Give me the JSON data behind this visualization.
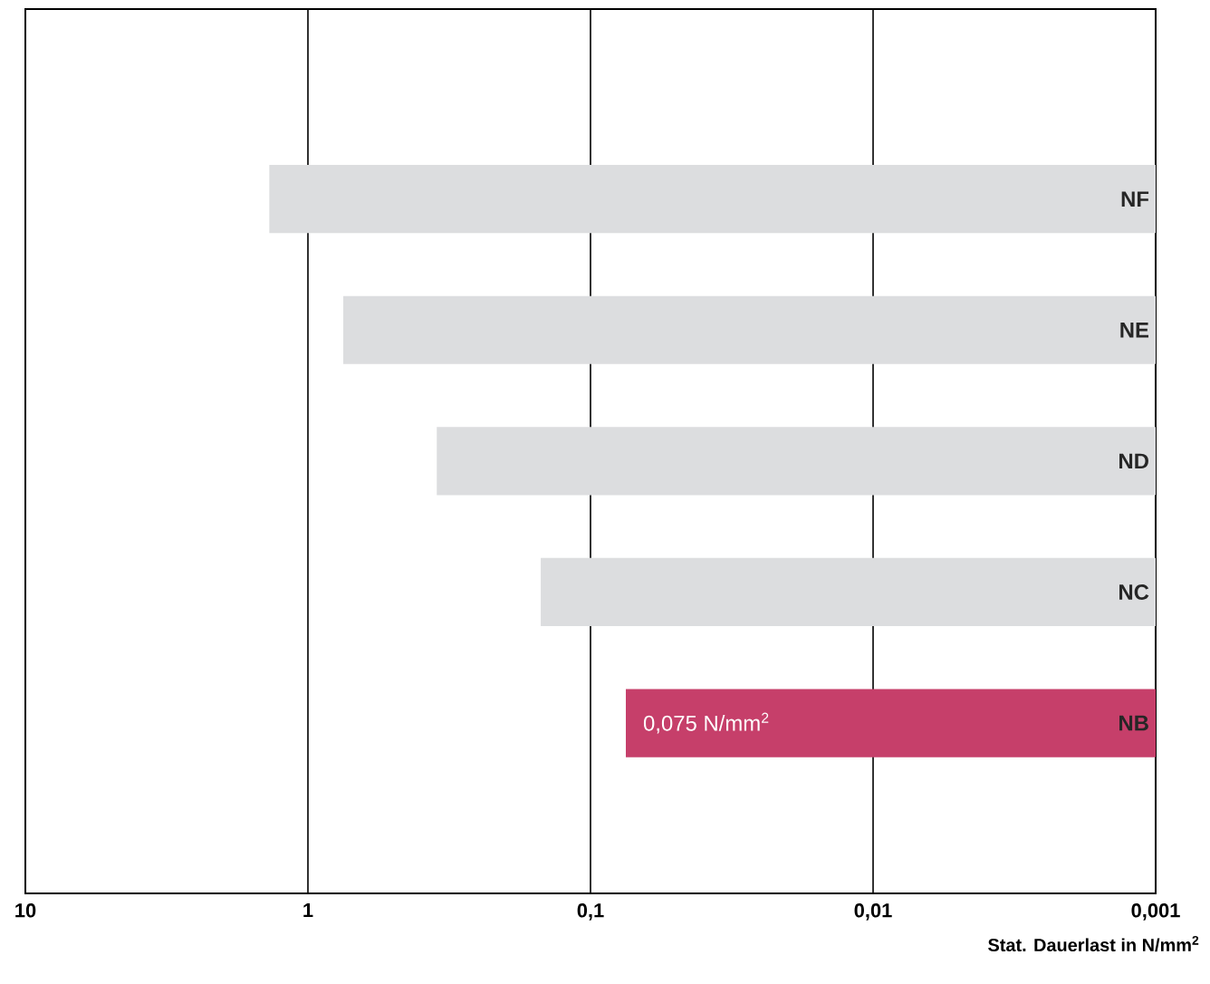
{
  "chart_data": {
    "type": "bar",
    "orientation": "horizontal",
    "log": "x",
    "xlabel": "Stat. Dauerlast in N/mm$^{2}$",
    "categories": [
      "NF",
      "NE",
      "ND",
      "NC",
      "NB"
    ],
    "values": [
      1.37,
      0.75,
      0.35,
      0.15,
      0.075
    ],
    "colors": [
      "#dcdddf",
      "#dcdddf",
      "#dcdddf",
      "#dcdddf",
      "#c63f6a"
    ],
    "value_labels": [
      null,
      null,
      null,
      null,
      "0,075 N/mm$^{2}$"
    ],
    "xlim": [
      10,
      0.001
    ],
    "xticks": [
      10,
      1,
      {
        "value": 0.1,
        "label": "0,1"
      },
      {
        "value": 0.01,
        "label": "0,01"
      },
      {
        "value": 0.001,
        "label": "0,001"
      }
    ],
    "grid": "x"
  }
}
